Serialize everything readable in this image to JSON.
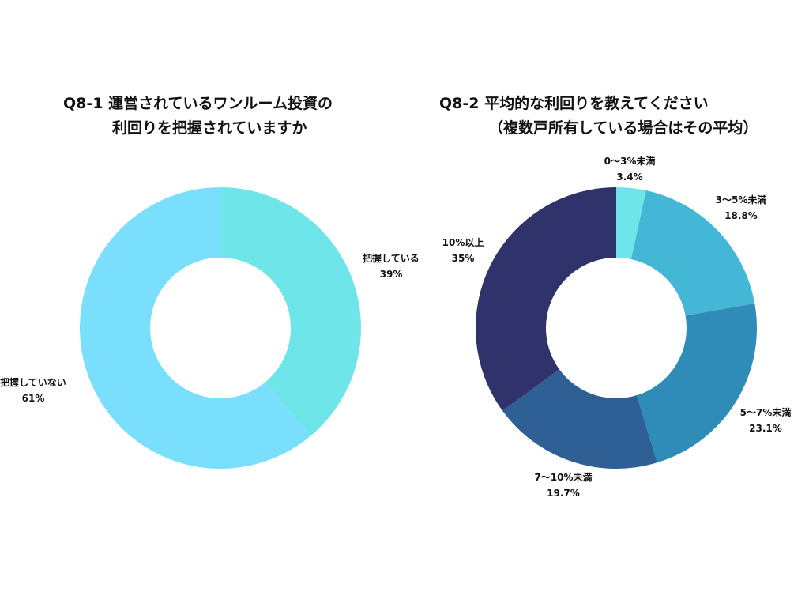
{
  "chart_data": [
    {
      "type": "pie",
      "title_lines": [
        "Q8-1 運営されているワンルーム投資の",
        "利回りを把握されていますか"
      ],
      "slices": [
        {
          "label": "把握している",
          "value": 39,
          "display": "39%",
          "color": "#6ee5e8"
        },
        {
          "label": "把握していない",
          "value": 61,
          "display": "61%",
          "color": "#7adffd"
        }
      ]
    },
    {
      "type": "pie",
      "title_lines": [
        "Q8-2 平均的な利回りを教えてください",
        "（複数戸所有している場合はその平均）"
      ],
      "slices": [
        {
          "label": "0〜3%未満",
          "value": 3.4,
          "display": "3.4%",
          "color": "#6ee5e8"
        },
        {
          "label": "3〜5%未満",
          "value": 18.8,
          "display": "18.8%",
          "color": "#44b7d6"
        },
        {
          "label": "5〜7%未満",
          "value": 23.1,
          "display": "23.1%",
          "color": "#2f8cb8"
        },
        {
          "label": "7〜10%未満",
          "value": 19.7,
          "display": "19.7%",
          "color": "#2e5f95"
        },
        {
          "label": "10%以上",
          "value": 35,
          "display": "35%",
          "color": "#30336b"
        }
      ]
    }
  ]
}
